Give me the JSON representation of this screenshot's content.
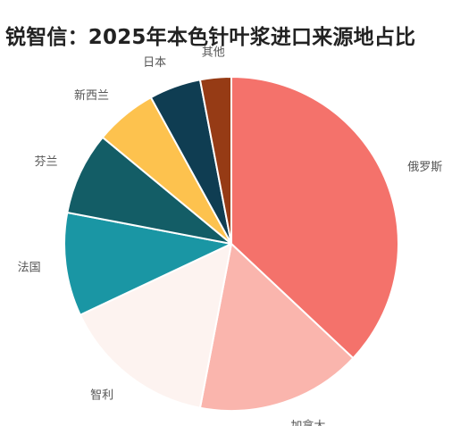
{
  "chart_data": {
    "type": "pie",
    "title": "锐智信：2025年本色针叶浆进口来源地占比",
    "categories": [
      "俄罗斯",
      "加拿大",
      "智利",
      "法国",
      "芬兰",
      "新西兰",
      "日本",
      "其他"
    ],
    "values": [
      37,
      16,
      15,
      10,
      8,
      6,
      5,
      3
    ],
    "colors": [
      "#f4726b",
      "#fab5ad",
      "#fdf3f0",
      "#1a96a4",
      "#135d66",
      "#fdc24e",
      "#0f3d52",
      "#963b15"
    ],
    "start": "top",
    "direction": "clockwise"
  }
}
